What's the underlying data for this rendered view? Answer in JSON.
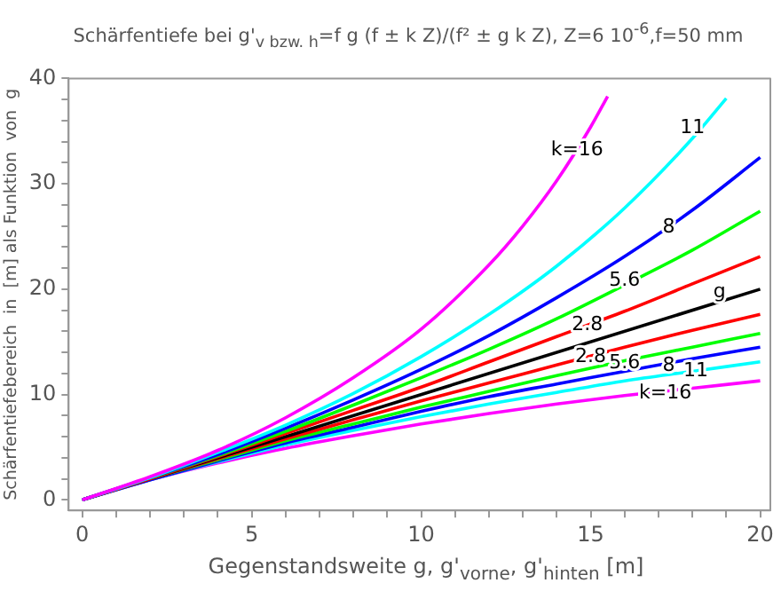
{
  "chart_data": {
    "type": "line",
    "title": "Schärfentiefe bei g'$_{v bzw. h}$=f g (f ± k Z)/(f² ± g k Z), Z=6 10$^{-6}$,f=50 mm",
    "xlabel": "Gegenstandsweite  g, g'$_{vorne}$, g'$_{hinten}$ [m]",
    "ylabel": "Schärfentiefebereich  in  [m] als Funktion  von  g",
    "series": [
      {
        "color": "#ff00ff",
        "x": [
          0,
          2,
          4,
          6,
          8,
          10,
          12,
          13,
          14,
          15,
          15.5
        ],
        "values": [
          0,
          2.2,
          4.7,
          7.8,
          11.6,
          16.2,
          22.3,
          26.0,
          30.3,
          35.4,
          38.3
        ]
      },
      {
        "color": "#00ffff",
        "x": [
          0,
          2,
          4,
          6,
          8,
          10,
          12,
          14,
          16,
          18,
          19
        ],
        "values": [
          0,
          2.1,
          4.5,
          7.1,
          10.1,
          13.6,
          17.6,
          22.2,
          27.7,
          34.3,
          38.1
        ]
      },
      {
        "color": "#0000ff",
        "x": [
          0,
          2,
          4,
          6,
          8,
          10,
          12,
          14,
          16,
          18,
          20
        ],
        "values": [
          0,
          2.1,
          4.3,
          6.8,
          9.5,
          12.4,
          15.6,
          19.2,
          23.1,
          27.5,
          32.5
        ]
      },
      {
        "color": "#00ff00",
        "x": [
          0,
          2,
          4,
          6,
          8,
          10,
          12,
          14,
          16,
          18,
          20
        ],
        "values": [
          0,
          2.1,
          4.2,
          6.5,
          9.0,
          11.6,
          14.3,
          17.2,
          20.4,
          23.7,
          27.4
        ]
      },
      {
        "color": "#ff0000",
        "x": [
          0,
          2,
          4,
          6,
          8,
          10,
          12,
          14,
          16,
          18,
          20
        ],
        "values": [
          0,
          2.0,
          4.1,
          6.3,
          8.5,
          10.7,
          13.1,
          15.5,
          17.9,
          20.5,
          23.1
        ]
      },
      {
        "color": "#000000",
        "x": [
          0,
          20
        ],
        "values": [
          0,
          20
        ]
      },
      {
        "color": "#ff0000",
        "x": [
          0,
          2,
          4,
          6,
          8,
          10,
          12,
          14,
          16,
          18,
          20
        ],
        "values": [
          0,
          2.0,
          3.9,
          5.8,
          7.6,
          9.4,
          11.1,
          12.8,
          14.5,
          16.1,
          17.6
        ]
      },
      {
        "color": "#00ff00",
        "x": [
          0,
          2,
          4,
          6,
          8,
          10,
          12,
          14,
          16,
          18,
          20
        ],
        "values": [
          0,
          2.0,
          3.8,
          5.6,
          7.2,
          8.8,
          10.3,
          11.8,
          13.2,
          14.5,
          15.8
        ]
      },
      {
        "color": "#0000ff",
        "x": [
          0,
          2,
          4,
          6,
          8,
          10,
          12,
          14,
          16,
          18,
          20
        ],
        "values": [
          0,
          1.9,
          3.7,
          5.4,
          6.9,
          8.4,
          9.8,
          11.0,
          12.2,
          13.4,
          14.5
        ]
      },
      {
        "color": "#00ffff",
        "x": [
          0,
          2,
          4,
          6,
          8,
          10,
          12,
          14,
          16,
          18,
          20
        ],
        "values": [
          0,
          1.9,
          3.6,
          5.2,
          6.6,
          7.9,
          9.1,
          10.2,
          11.3,
          12.2,
          13.1
        ]
      },
      {
        "color": "#ff00ff",
        "x": [
          0,
          2,
          4,
          6,
          8,
          10,
          12,
          14,
          16,
          18,
          20
        ],
        "values": [
          0,
          1.9,
          3.5,
          4.9,
          6.1,
          7.2,
          8.2,
          9.1,
          9.9,
          10.6,
          11.3
        ]
      }
    ],
    "annotations": [
      {
        "text": "k=16",
        "x": 14.6,
        "y": 33.2
      },
      {
        "text": "11",
        "x": 18.0,
        "y": 35.3
      },
      {
        "text": "8",
        "x": 17.3,
        "y": 25.9
      },
      {
        "text": "5.6",
        "x": 16.0,
        "y": 20.8
      },
      {
        "text": "2.8",
        "x": 14.9,
        "y": 16.6
      },
      {
        "text": "g",
        "x": 18.8,
        "y": 19.7
      },
      {
        "text": "2.8",
        "x": 15.0,
        "y": 13.6
      },
      {
        "text": "5.6",
        "x": 16.0,
        "y": 13.0
      },
      {
        "text": "8",
        "x": 17.3,
        "y": 12.7
      },
      {
        "text": "11",
        "x": 18.1,
        "y": 12.2
      },
      {
        "text": "k=16",
        "x": 17.2,
        "y": 10.1
      }
    ],
    "xlim": [
      -0.4,
      20.3
    ],
    "ylim": [
      -1,
      40
    ],
    "xticks": [
      0,
      {
        "value": 1,
        "label": null
      },
      {
        "value": 2,
        "label": null
      },
      {
        "value": 3,
        "label": null
      },
      {
        "value": 4,
        "label": null
      },
      5,
      {
        "value": 6,
        "label": null
      },
      {
        "value": 7,
        "label": null
      },
      {
        "value": 8,
        "label": null
      },
      {
        "value": 9,
        "label": null
      },
      10,
      {
        "value": 11,
        "label": null
      },
      {
        "value": 12,
        "label": null
      },
      {
        "value": 13,
        "label": null
      },
      {
        "value": 14,
        "label": null
      },
      15,
      {
        "value": 16,
        "label": null
      },
      {
        "value": 17,
        "label": null
      },
      {
        "value": 18,
        "label": null
      },
      {
        "value": 19,
        "label": null
      },
      20
    ],
    "yticks": [
      0,
      {
        "value": 2,
        "label": null
      },
      {
        "value": 4,
        "label": null
      },
      {
        "value": 6,
        "label": null
      },
      {
        "value": 8,
        "label": null
      },
      10,
      {
        "value": 12,
        "label": null
      },
      {
        "value": 14,
        "label": null
      },
      {
        "value": 16,
        "label": null
      },
      {
        "value": 18,
        "label": null
      },
      20,
      {
        "value": 22,
        "label": null
      },
      {
        "value": 24,
        "label": null
      },
      {
        "value": 26,
        "label": null
      },
      {
        "value": 28,
        "label": null
      },
      30,
      {
        "value": 32,
        "label": null
      },
      {
        "value": 34,
        "label": null
      },
      {
        "value": 36,
        "label": null
      },
      {
        "value": 38,
        "label": null
      },
      40
    ],
    "grid": false,
    "legend": false,
    "marker": "none",
    "line_style": "solid"
  }
}
